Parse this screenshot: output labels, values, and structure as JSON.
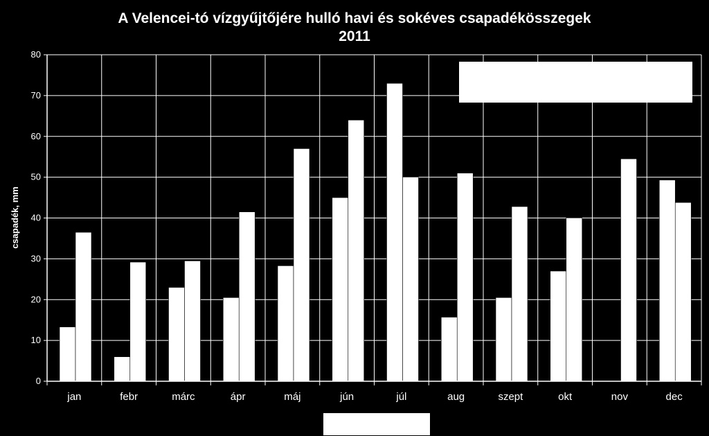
{
  "chart_data": {
    "type": "bar",
    "title": "A Velencei-tó vízgyűjtőjére hulló havi és sokéves csapadékösszegek",
    "subtitle": "2011",
    "xlabel": "",
    "ylabel": "csapadék, mm",
    "ylim": [
      0,
      80
    ],
    "yticks": [
      0,
      10,
      20,
      30,
      40,
      50,
      60,
      70,
      80
    ],
    "grid": true,
    "legend_position": "top-right",
    "categories": [
      "jan",
      "febr",
      "márc",
      "ápr",
      "máj",
      "jún",
      "júl",
      "aug",
      "szept",
      "okt",
      "nov",
      "dec"
    ],
    "series": [
      {
        "name": "",
        "color": "#ffffff",
        "values": [
          13.3,
          6.0,
          23.0,
          20.5,
          28.3,
          45.0,
          73.0,
          15.7,
          20.5,
          27.0,
          0,
          49.3
        ]
      },
      {
        "name": "",
        "color": "#ffffff",
        "values": [
          36.5,
          29.2,
          29.5,
          41.5,
          57.0,
          64.0,
          50.0,
          51.0,
          42.8,
          40.0,
          54.5,
          43.8
        ]
      }
    ],
    "colors": {
      "background": "#000000",
      "bars": "#ffffff",
      "grid": "#ffffff"
    }
  }
}
